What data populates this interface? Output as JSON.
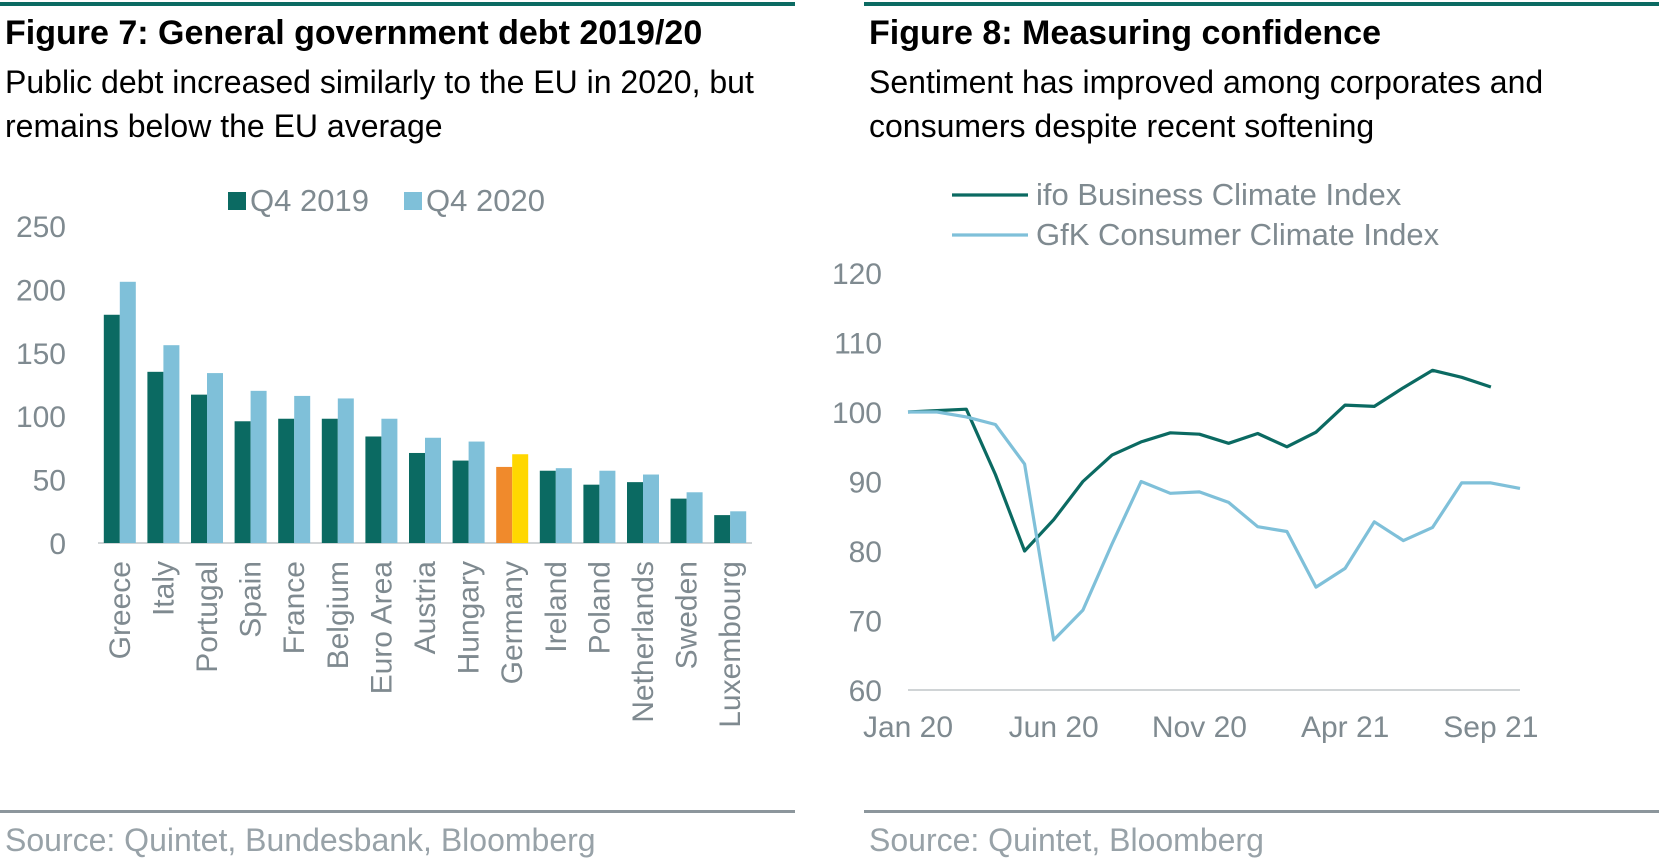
{
  "figures": [
    {
      "title": "Figure 7: General government debt 2019/20",
      "subtitle": "Public debt increased similarly to the EU in 2020, but remains below the EU average",
      "source": "Source: Quintet, Bundesbank, Bloomberg"
    },
    {
      "title": "Figure 8: Measuring confidence",
      "subtitle": "Sentiment has improved among corporates and consumers despite recent softening",
      "source": "Source: Quintet, Bloomberg"
    }
  ],
  "chart_data": [
    {
      "type": "bar",
      "categories": [
        "Greece",
        "Italy",
        "Portugal",
        "Spain",
        "France",
        "Belgium",
        "Euro Area",
        "Austria",
        "Hungary",
        "Germany",
        "Ireland",
        "Poland",
        "Netherlands",
        "Sweden",
        "Luxembourg"
      ],
      "series": [
        {
          "name": "Q4 2019",
          "color": "#0b6a62",
          "values": [
            180,
            135,
            117,
            96,
            98,
            98,
            84,
            71,
            65,
            60,
            57,
            46,
            48,
            35,
            22
          ]
        },
        {
          "name": "Q4 2020",
          "color": "#7fc0d9",
          "values": [
            206,
            156,
            134,
            120,
            116,
            114,
            98,
            83,
            80,
            70,
            59,
            57,
            54,
            40,
            25
          ]
        }
      ],
      "highlight": {
        "category": "Germany",
        "colors": [
          "#f08a2c",
          "#ffd700"
        ]
      },
      "ylim": [
        0,
        250
      ],
      "yticks": [
        0,
        50,
        100,
        150,
        200,
        250
      ],
      "legend_position": "top"
    },
    {
      "type": "line",
      "x": [
        "2020-01",
        "2020-02",
        "2020-03",
        "2020-04",
        "2020-05",
        "2020-06",
        "2020-07",
        "2020-08",
        "2020-09",
        "2020-10",
        "2020-11",
        "2020-12",
        "2021-01",
        "2021-02",
        "2021-03",
        "2021-04",
        "2021-05",
        "2021-06",
        "2021-07",
        "2021-08",
        "2021-09",
        "2021-10"
      ],
      "series": [
        {
          "name": "ifo Business Climate Index",
          "color": "#0b6a62",
          "values": [
            100,
            100.2,
            100.4,
            91,
            80,
            84.5,
            90,
            93.8,
            95.7,
            97,
            96.8,
            95.5,
            96.9,
            95,
            97.1,
            101,
            100.8,
            103.5,
            106,
            105,
            103.6,
            null
          ]
        },
        {
          "name": "GfK Consumer Climate Index",
          "color": "#7fc0d9",
          "values": [
            100,
            100,
            99.3,
            98.2,
            92.5,
            67.2,
            71.5,
            81,
            90,
            88.3,
            88.5,
            87,
            83.5,
            82.8,
            74.8,
            77.5,
            84.2,
            81.5,
            83.4,
            89.8,
            89.8,
            89
          ]
        }
      ],
      "xticks": [
        "Jan 20",
        "Jun 20",
        "Nov 20",
        "Apr 21",
        "Sep 21"
      ],
      "xtick_dates": [
        "2020-01",
        "2020-06",
        "2020-11",
        "2021-04",
        "2021-09"
      ],
      "ylim": [
        60,
        120
      ],
      "yticks": [
        60,
        70,
        80,
        90,
        100,
        110,
        120
      ],
      "legend_position": "top"
    }
  ]
}
